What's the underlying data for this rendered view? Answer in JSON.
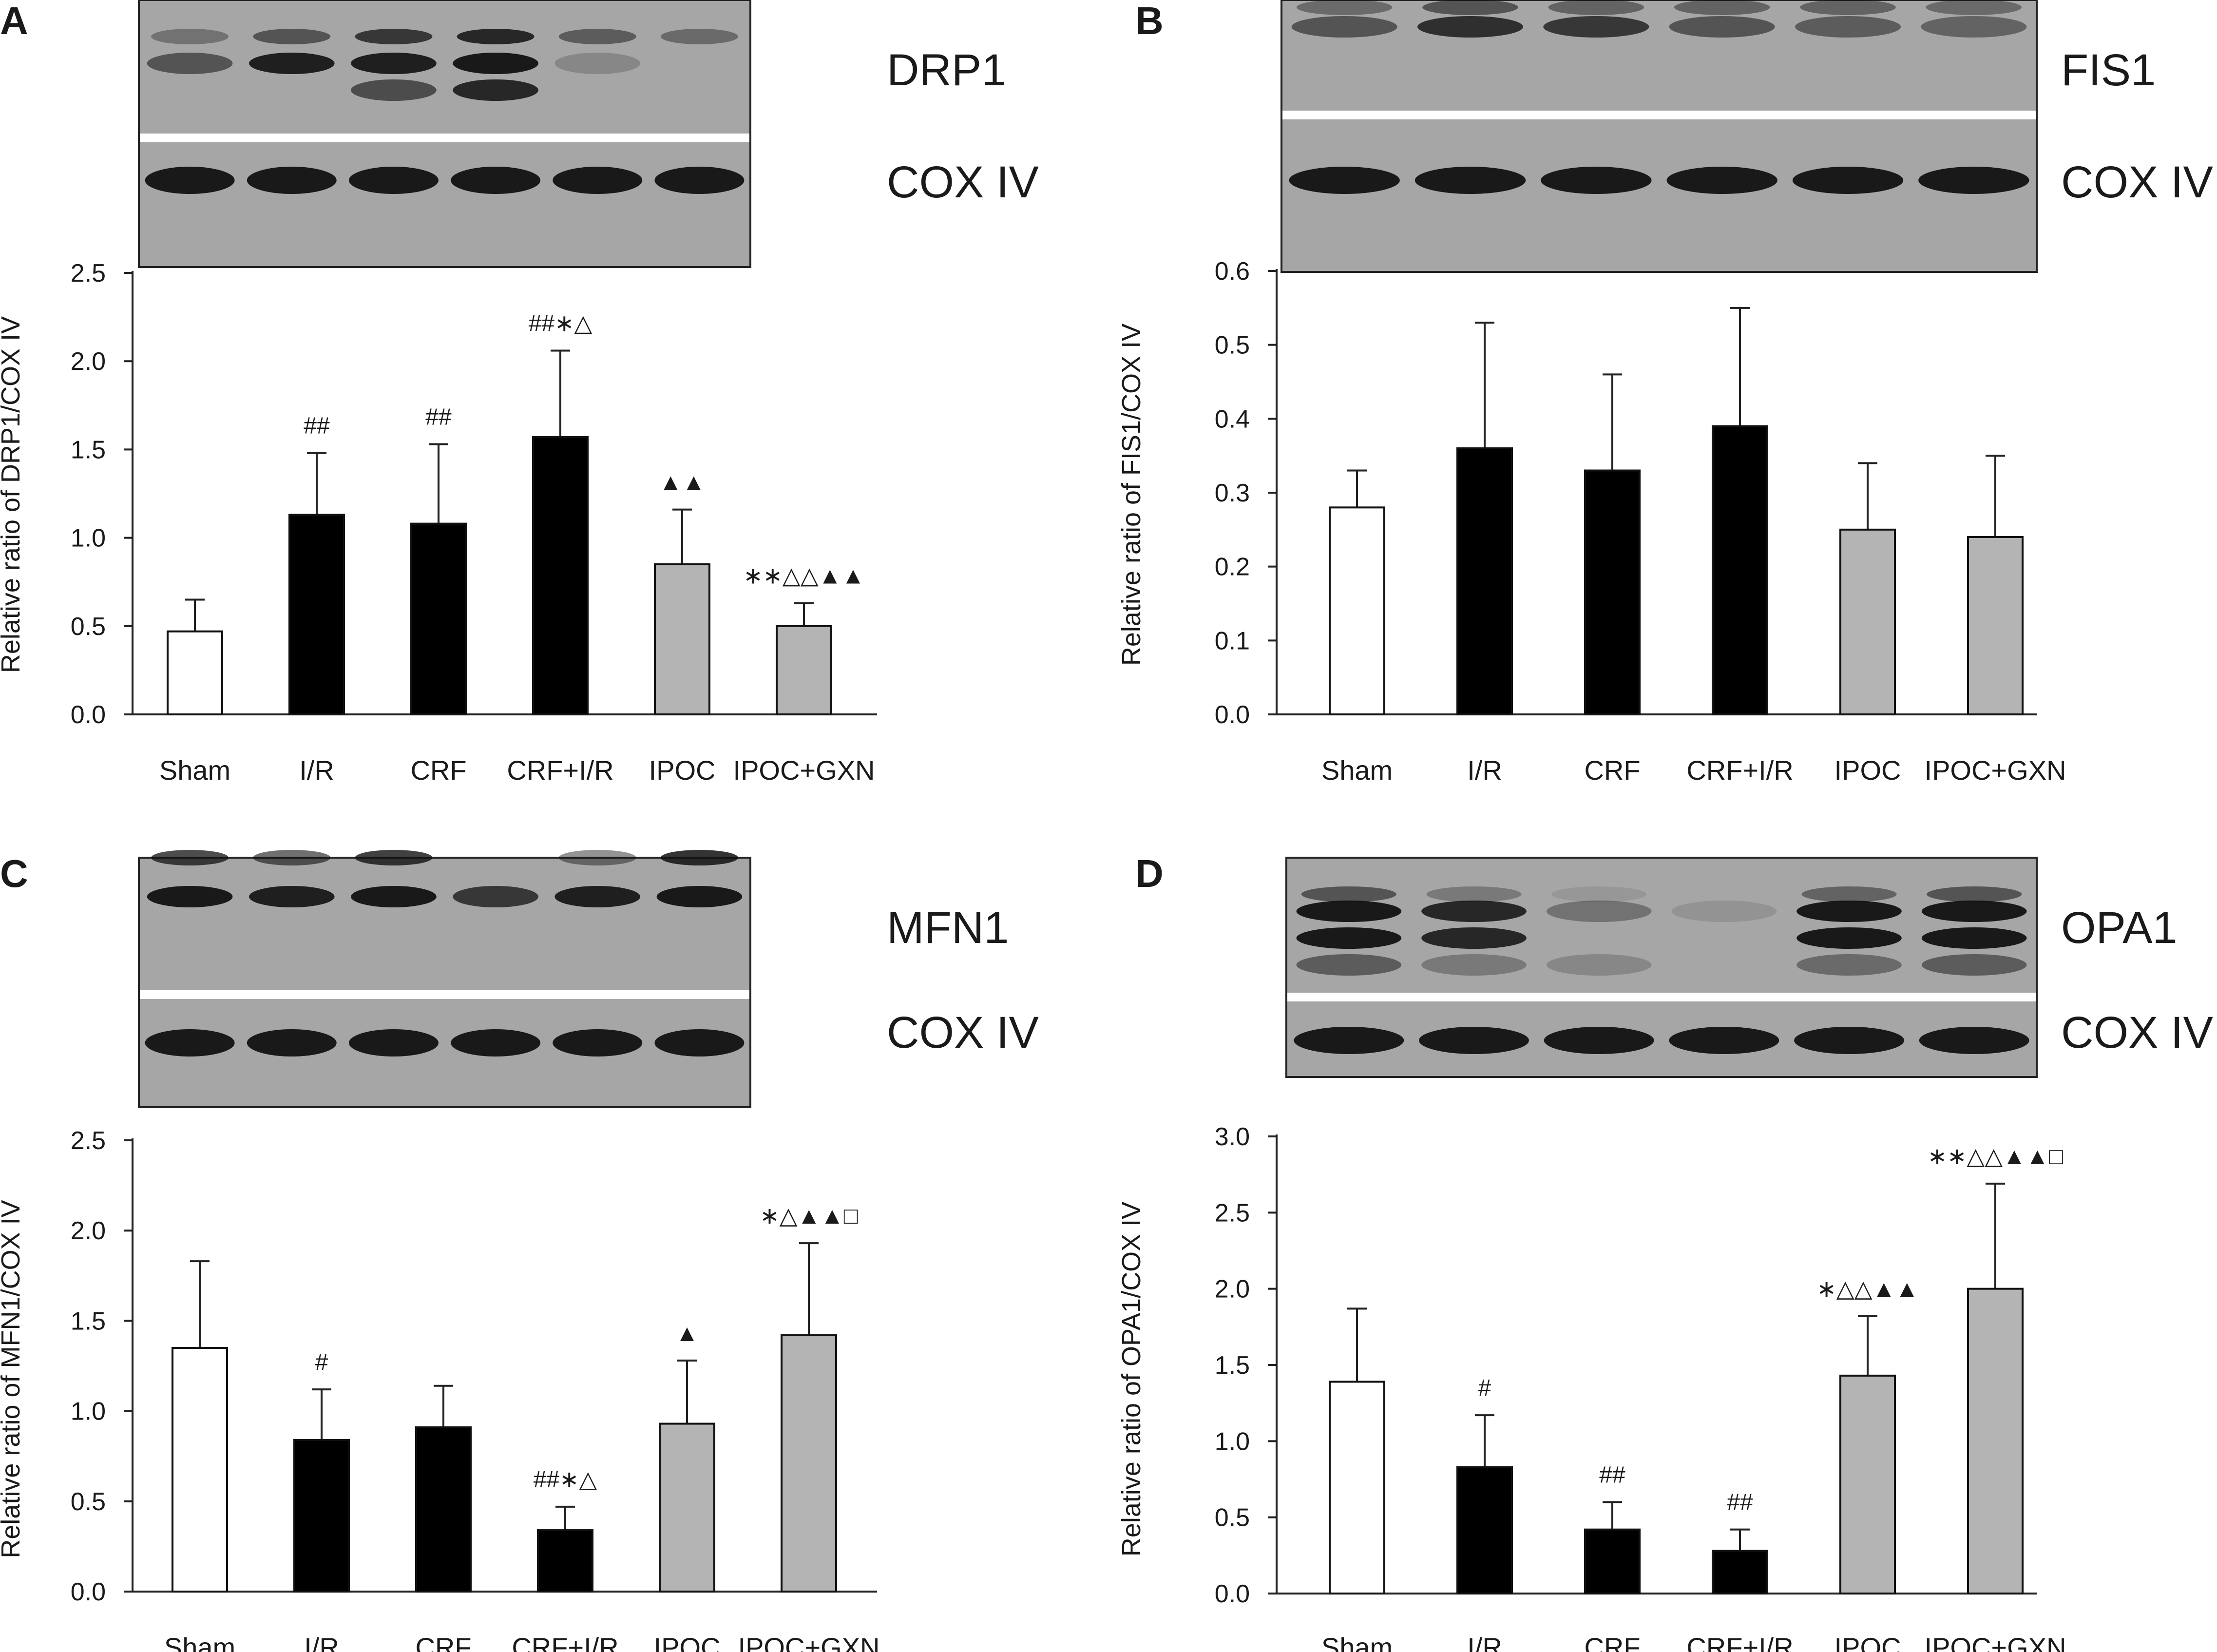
{
  "panels": [
    {
      "letter": "A",
      "blot": {
        "target": "DRP1",
        "loading": "COX IV"
      },
      "chart_data": {
        "type": "bar",
        "ylabel": "Relative ratio of  DRP1/COX IV",
        "ylim": [
          0,
          2.5
        ],
        "yticks": [
          "0.0",
          "0.5",
          "1.0",
          "1.5",
          "2.0",
          "2.5"
        ],
        "categories": [
          "Sham",
          "I/R",
          "CRF",
          "CRF+I/R",
          "IPOC",
          "IPOC+GXN"
        ],
        "values": [
          0.47,
          1.13,
          1.08,
          1.57,
          0.85,
          0.5
        ],
        "errors": [
          0.18,
          0.35,
          0.45,
          0.49,
          0.31,
          0.13
        ],
        "fills": [
          "#ffffff",
          "#000000",
          "#000000",
          "#000000",
          "#b4b4b4",
          "#b4b4b4"
        ],
        "annotations": [
          "",
          "##",
          "##",
          "##∗△",
          "▲▲",
          "∗∗△△▲▲"
        ]
      }
    },
    {
      "letter": "B",
      "blot": {
        "target": "FIS1",
        "loading": "COX IV"
      },
      "chart_data": {
        "type": "bar",
        "ylabel": "Relative ratio of  FIS1/COX IV",
        "ylim": [
          0,
          0.6
        ],
        "yticks": [
          "0.0",
          "0.1",
          "0.2",
          "0.3",
          "0.4",
          "0.5",
          "0.6"
        ],
        "categories": [
          "Sham",
          "I/R",
          "CRF",
          "CRF+I/R",
          "IPOC",
          "IPOC+GXN"
        ],
        "values": [
          0.28,
          0.36,
          0.33,
          0.39,
          0.25,
          0.24
        ],
        "errors": [
          0.05,
          0.17,
          0.13,
          0.16,
          0.09,
          0.11
        ],
        "fills": [
          "#ffffff",
          "#000000",
          "#000000",
          "#000000",
          "#b4b4b4",
          "#b4b4b4"
        ],
        "annotations": [
          "",
          "",
          "",
          "",
          "",
          ""
        ]
      }
    },
    {
      "letter": "C",
      "blot": {
        "target": "MFN1",
        "loading": "COX IV"
      },
      "chart_data": {
        "type": "bar",
        "ylabel": "Relative ratio of  MFN1/COX IV",
        "ylim": [
          0,
          2.5
        ],
        "yticks": [
          "0.0",
          "0.5",
          "1.0",
          "1.5",
          "2.0",
          "2.5"
        ],
        "categories": [
          "Sham",
          "I/R",
          "CRF",
          "CRF+I/R",
          "IPOC",
          "IPOC+GXN"
        ],
        "values": [
          1.35,
          0.84,
          0.91,
          0.34,
          0.93,
          1.42
        ],
        "errors": [
          0.48,
          0.28,
          0.23,
          0.13,
          0.35,
          0.51
        ],
        "fills": [
          "#ffffff",
          "#000000",
          "#000000",
          "#000000",
          "#b4b4b4",
          "#b4b4b4"
        ],
        "annotations": [
          "",
          "#",
          "",
          "##∗△",
          "▲",
          "∗△▲▲□"
        ]
      }
    },
    {
      "letter": "D",
      "blot": {
        "target": "OPA1",
        "loading": "COX IV"
      },
      "chart_data": {
        "type": "bar",
        "ylabel": "Relative ratio of  OPA1/COX IV",
        "ylim": [
          0,
          3.0
        ],
        "yticks": [
          "0.0",
          "0.5",
          "1.0",
          "1.5",
          "2.0",
          "2.5",
          "3.0"
        ],
        "categories": [
          "Sham",
          "I/R",
          "CRF",
          "CRF+I/R",
          "IPOC",
          "IPOC+GXN"
        ],
        "values": [
          1.39,
          0.83,
          0.42,
          0.28,
          1.43,
          2.0
        ],
        "errors": [
          0.48,
          0.34,
          0.18,
          0.14,
          0.39,
          0.69
        ],
        "fills": [
          "#ffffff",
          "#000000",
          "#000000",
          "#000000",
          "#b4b4b4",
          "#b4b4b4"
        ],
        "annotations": [
          "",
          "#",
          "##",
          "##",
          "∗△△▲▲",
          "∗∗△△▲▲□"
        ]
      }
    }
  ],
  "blot_bands": [
    [
      [
        [
          0.55,
          0.35
        ],
        [
          0.9,
          0.55
        ],
        [
          0.9,
          0.75
        ],
        [
          0.95,
          0.85
        ],
        [
          0.2,
          0.5
        ],
        [
          0.0,
          0.4
        ]
      ],
      [
        [
          0.0,
          0.0
        ],
        [
          0.0,
          0.0
        ],
        [
          0.6,
          0.5
        ],
        [
          0.85,
          1.0
        ],
        [
          0.0,
          0.1
        ],
        [
          0.0,
          0.0
        ]
      ],
      [
        [
          0.0,
          0.0
        ],
        [
          0.0,
          0.0
        ],
        [
          0.0,
          0.0
        ],
        [
          0.0,
          0.0
        ],
        [
          0.0,
          0.0
        ],
        [
          0.0,
          0.0
        ]
      ]
    ],
    [
      [
        [
          0.55,
          0.4
        ],
        [
          0.8,
          0.55
        ],
        [
          0.75,
          0.45
        ],
        [
          0.55,
          0.45
        ],
        [
          0.5,
          0.45
        ],
        [
          0.45,
          0.4
        ]
      ],
      [
        [
          0.0,
          0.0
        ],
        [
          0.0,
          0.0
        ],
        [
          0.0,
          0.0
        ],
        [
          0.0,
          0.0
        ],
        [
          0.0,
          0.0
        ],
        [
          0.0,
          0.0
        ]
      ],
      [
        [
          0.0,
          0.0
        ],
        [
          0.0,
          0.0
        ],
        [
          0.0,
          0.0
        ],
        [
          0.0,
          0.0
        ],
        [
          0.0,
          0.0
        ],
        [
          0.0,
          0.0
        ]
      ]
    ],
    [
      [
        [
          0.95,
          0.75
        ],
        [
          0.9,
          0.6
        ],
        [
          0.95,
          0.8
        ],
        [
          0.75,
          0.0
        ],
        [
          0.9,
          0.45
        ],
        [
          0.95,
          0.85
        ]
      ],
      [
        [
          0.0,
          0.0
        ],
        [
          0.0,
          0.0
        ],
        [
          0.0,
          0.0
        ],
        [
          0.0,
          0.0
        ],
        [
          0.0,
          0.0
        ],
        [
          0.0,
          0.0
        ]
      ],
      [
        [
          0.0,
          0.0
        ],
        [
          0.0,
          0.0
        ],
        [
          0.0,
          0.0
        ],
        [
          0.0,
          0.0
        ],
        [
          0.0,
          0.0
        ],
        [
          0.0,
          0.0
        ]
      ]
    ],
    [
      [
        [
          0.95,
          0.55
        ],
        [
          0.85,
          0.3
        ],
        [
          0.35,
          0.1
        ],
        [
          0.12,
          0.0
        ],
        [
          0.95,
          0.45
        ],
        [
          0.95,
          0.55
        ]
      ],
      [
        [
          0.95,
          0.45
        ],
        [
          0.85,
          0.25
        ],
        [
          0.0,
          0.0
        ],
        [
          0.0,
          0.0
        ],
        [
          0.95,
          0.4
        ],
        [
          0.95,
          0.45
        ]
      ],
      [
        [
          0.5,
          0.0
        ],
        [
          0.3,
          0.0
        ],
        [
          0.2,
          0.0
        ],
        [
          0.0,
          0.0
        ],
        [
          0.4,
          0.0
        ],
        [
          0.5,
          0.0
        ]
      ]
    ]
  ]
}
